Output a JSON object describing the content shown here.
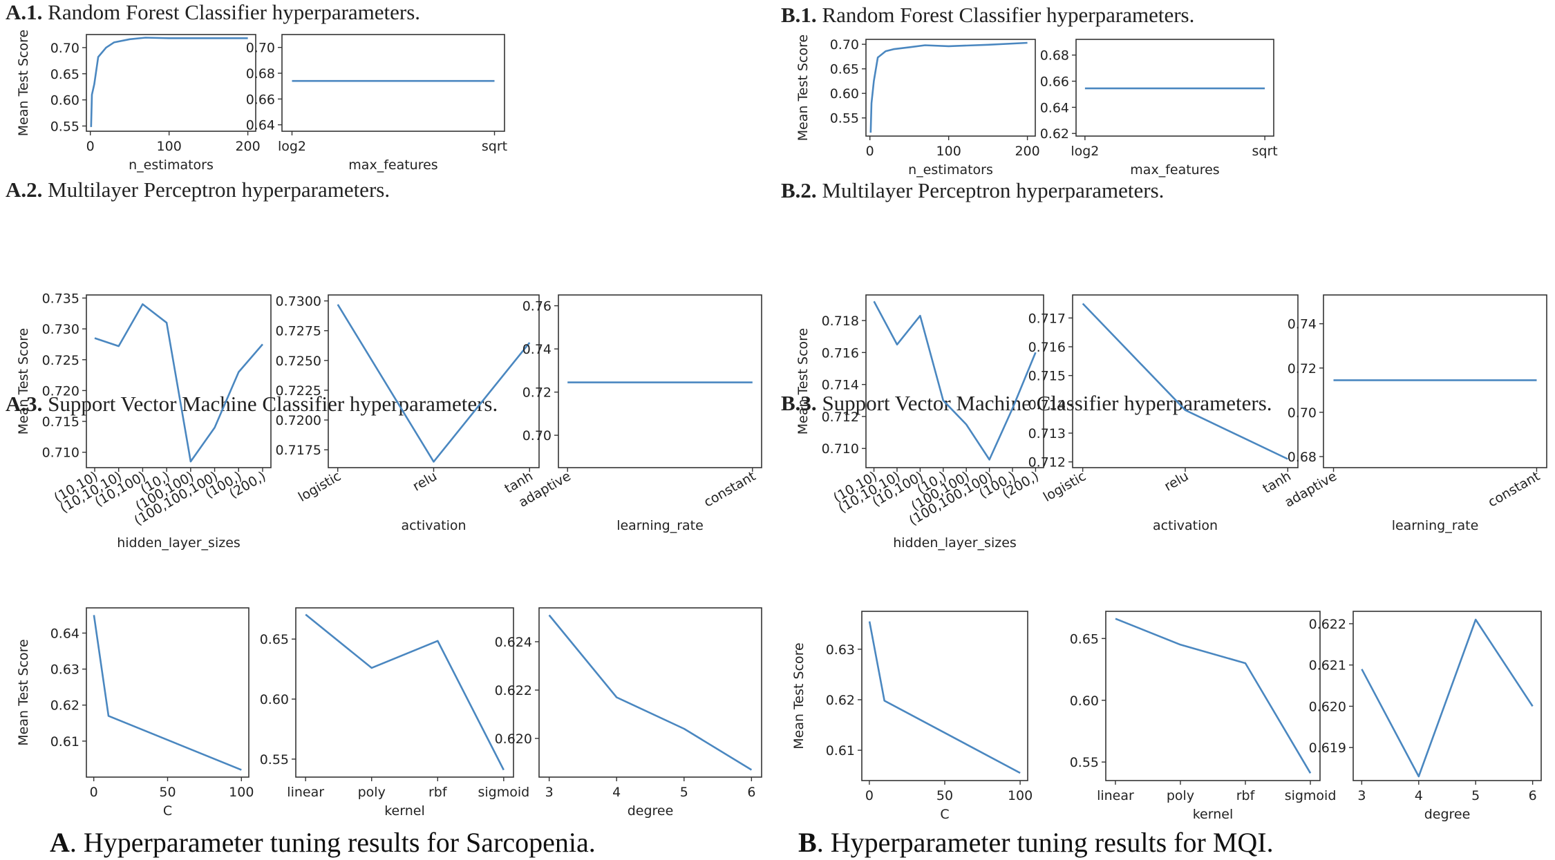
{
  "sections": [
    {
      "id": "A.1.",
      "text": " Random Forest Classifier hyperparameters."
    },
    {
      "id": "A.2.",
      "text": " Multilayer Perceptron hyperparameters."
    },
    {
      "id": "A.3.",
      "text": " Support Vector Machine Classifier hyperparameters."
    },
    {
      "id": "B.1.",
      "text": " Random Forest Classifier hyperparameters."
    },
    {
      "id": "B.2.",
      "text": " Multilayer Perceptron hyperparameters."
    },
    {
      "id": "B.3.",
      "text": " Support Vector Machine Classifier hyperparameters."
    }
  ],
  "captions": {
    "A": {
      "id": "A",
      "text": ". Hyperparameter tuning results for Sarcopenia."
    },
    "B": {
      "id": "B",
      "text": ". Hyperparameter tuning results for MQI."
    }
  },
  "line_color": "#4a87c0",
  "chart_data": [
    {
      "type": "line",
      "group": "A.1.",
      "xlabel": "n_estimators",
      "ylabel": "Mean Test Score",
      "x": [
        1,
        2,
        5,
        10,
        20,
        30,
        50,
        70,
        100,
        150,
        200
      ],
      "values": [
        0.548,
        0.61,
        0.63,
        0.682,
        0.7,
        0.71,
        0.716,
        0.719,
        0.718,
        0.718,
        0.718
      ],
      "xlim": [
        -5,
        210
      ],
      "xticks": [
        0,
        100,
        200
      ],
      "ylim": [
        0.54,
        0.725
      ],
      "yticks": [
        0.55,
        0.6,
        0.65,
        0.7
      ]
    },
    {
      "type": "line",
      "group": "A.1.",
      "xlabel": "max_features",
      "ylabel": "",
      "categories": [
        "log2",
        "sqrt"
      ],
      "values": [
        0.674,
        0.674
      ],
      "ylim": [
        0.635,
        0.71
      ],
      "yticks": [
        0.64,
        0.66,
        0.68,
        0.7
      ]
    },
    {
      "type": "line",
      "group": "A.2.",
      "xlabel": "hidden_layer_sizes",
      "ylabel": "Mean Test Score",
      "categories": [
        "(10,10)",
        "(10,10,10)",
        "(10,100)",
        "(10,)",
        "(100,100)",
        "(100,100,100)",
        "(100,)",
        "(200,)"
      ],
      "values": [
        0.7285,
        0.7272,
        0.734,
        0.731,
        0.7085,
        0.714,
        0.723,
        0.7275
      ],
      "ylim": [
        0.7075,
        0.7355
      ],
      "yticks": [
        0.71,
        0.715,
        0.72,
        0.725,
        0.73,
        0.735
      ]
    },
    {
      "type": "line",
      "group": "A.2.",
      "xlabel": "activation",
      "ylabel": "",
      "categories": [
        "logistic",
        "relu",
        "tanh"
      ],
      "values": [
        0.7297,
        0.7165,
        0.7265
      ],
      "ylim": [
        0.716,
        0.7305
      ],
      "yticks": [
        0.7175,
        0.72,
        0.7225,
        0.725,
        0.7275,
        0.73
      ]
    },
    {
      "type": "line",
      "group": "A.2.",
      "xlabel": "learning_rate",
      "ylabel": "",
      "categories": [
        "adaptive",
        "constant"
      ],
      "values": [
        0.7245,
        0.7245
      ],
      "ylim": [
        0.685,
        0.765
      ],
      "yticks": [
        0.7,
        0.72,
        0.74,
        0.76
      ]
    },
    {
      "type": "line",
      "group": "A.3.",
      "xlabel": "C",
      "ylabel": "Mean Test Score",
      "x": [
        0.1,
        10,
        100
      ],
      "values": [
        0.645,
        0.617,
        0.602
      ],
      "xlim": [
        -5,
        105
      ],
      "xticks": [
        0,
        50,
        100
      ],
      "ylim": [
        0.6,
        0.647
      ],
      "yticks": [
        0.61,
        0.62,
        0.63,
        0.64
      ]
    },
    {
      "type": "line",
      "group": "A.3.",
      "xlabel": "kernel",
      "ylabel": "",
      "categories": [
        "linear",
        "poly",
        "rbf",
        "sigmoid"
      ],
      "values": [
        0.6705,
        0.626,
        0.6485,
        0.541
      ],
      "ylim": [
        0.535,
        0.676
      ],
      "yticks": [
        0.55,
        0.6,
        0.65
      ]
    },
    {
      "type": "line",
      "group": "A.3.",
      "xlabel": "degree",
      "ylabel": "",
      "x": [
        3,
        4,
        5,
        6
      ],
      "values": [
        0.6251,
        0.6217,
        0.6204,
        0.6187
      ],
      "xlim": [
        2.85,
        6.15
      ],
      "xticks": [
        3,
        4,
        5,
        6
      ],
      "ylim": [
        0.6184,
        0.6254
      ],
      "yticks": [
        0.62,
        0.622,
        0.624
      ]
    },
    {
      "type": "line",
      "group": "B.1.",
      "xlabel": "n_estimators",
      "ylabel": "Mean Test Score",
      "x": [
        1,
        2,
        5,
        10,
        20,
        30,
        50,
        70,
        100,
        150,
        200
      ],
      "values": [
        0.52,
        0.58,
        0.625,
        0.673,
        0.686,
        0.69,
        0.694,
        0.698,
        0.696,
        0.699,
        0.703
      ],
      "xlim": [
        -5,
        210
      ],
      "xticks": [
        0,
        100,
        200
      ],
      "ylim": [
        0.513,
        0.71
      ],
      "yticks": [
        0.55,
        0.6,
        0.65,
        0.7
      ]
    },
    {
      "type": "line",
      "group": "B.1.",
      "xlabel": "max_features",
      "ylabel": "",
      "categories": [
        "log2",
        "sqrt"
      ],
      "values": [
        0.6545,
        0.6545
      ],
      "ylim": [
        0.618,
        0.692
      ],
      "yticks": [
        0.62,
        0.64,
        0.66,
        0.68
      ]
    },
    {
      "type": "line",
      "group": "B.2.",
      "xlabel": "hidden_layer_sizes",
      "ylabel": "Mean Test Score",
      "categories": [
        "(10,10)",
        "(10,10,10)",
        "(10,100)",
        "(10,)",
        "(100,100)",
        "(100,100,100)",
        "(100,)",
        "(200,)"
      ],
      "values": [
        0.7192,
        0.7165,
        0.7183,
        0.713,
        0.7115,
        0.7093,
        0.7125,
        0.716
      ],
      "ylim": [
        0.7088,
        0.7196
      ],
      "yticks": [
        0.71,
        0.712,
        0.714,
        0.716,
        0.718
      ]
    },
    {
      "type": "line",
      "group": "B.2.",
      "xlabel": "activation",
      "ylabel": "",
      "categories": [
        "logistic",
        "relu",
        "tanh"
      ],
      "values": [
        0.7175,
        0.7138,
        0.7121
      ],
      "ylim": [
        0.7118,
        0.7178
      ],
      "yticks": [
        0.712,
        0.713,
        0.714,
        0.715,
        0.716,
        0.717
      ]
    },
    {
      "type": "line",
      "group": "B.2.",
      "xlabel": "learning_rate",
      "ylabel": "",
      "categories": [
        "adaptive",
        "constant"
      ],
      "values": [
        0.7145,
        0.7145
      ],
      "ylim": [
        0.675,
        0.753
      ],
      "yticks": [
        0.68,
        0.7,
        0.72,
        0.74
      ]
    },
    {
      "type": "line",
      "group": "B.3.",
      "xlabel": "C",
      "ylabel": "Mean Test Score",
      "x": [
        0.1,
        10,
        100
      ],
      "values": [
        0.6355,
        0.6198,
        0.6055
      ],
      "xlim": [
        -5,
        105
      ],
      "xticks": [
        0,
        50,
        100
      ],
      "ylim": [
        0.604,
        0.6375
      ],
      "yticks": [
        0.61,
        0.62,
        0.63
      ]
    },
    {
      "type": "line",
      "group": "B.3.",
      "xlabel": "kernel",
      "ylabel": "",
      "categories": [
        "linear",
        "poly",
        "rbf",
        "sigmoid"
      ],
      "values": [
        0.666,
        0.645,
        0.63,
        0.541
      ],
      "ylim": [
        0.535,
        0.672
      ],
      "yticks": [
        0.55,
        0.6,
        0.65
      ]
    },
    {
      "type": "line",
      "group": "B.3.",
      "xlabel": "degree",
      "ylabel": "",
      "x": [
        3,
        4,
        5,
        6
      ],
      "values": [
        0.6209,
        0.6183,
        0.6221,
        0.62
      ],
      "xlim": [
        2.85,
        6.15
      ],
      "xticks": [
        3,
        4,
        5,
        6
      ],
      "ylim": [
        0.6182,
        0.6223
      ],
      "yticks": [
        0.619,
        0.62,
        0.621,
        0.622
      ]
    }
  ]
}
